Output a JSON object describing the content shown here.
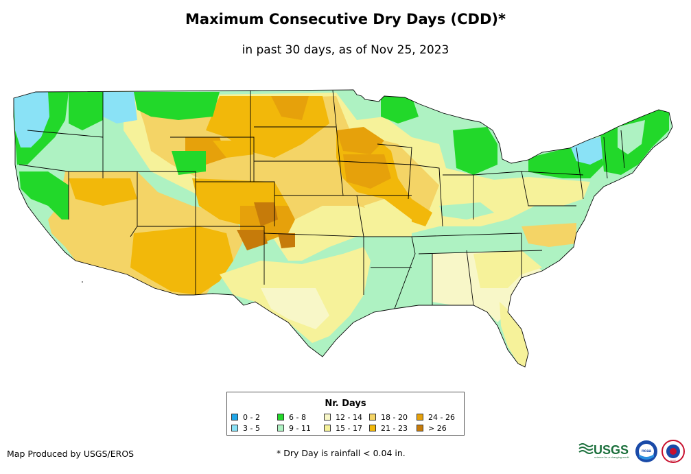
{
  "title": "Maximum Consecutive Dry Days (CDD)*",
  "subtitle": "in past 30 days, as of Nov 25, 2023",
  "legend": {
    "title": "Nr. Days",
    "items": [
      {
        "label": "0 - 2",
        "color": "#1fa6e8"
      },
      {
        "label": "3 - 5",
        "color": "#8ae2f6"
      },
      {
        "label": "6 - 8",
        "color": "#22d82a"
      },
      {
        "label": "9 - 11",
        "color": "#aef2c2"
      },
      {
        "label": "12 - 14",
        "color": "#f8f7c8"
      },
      {
        "label": "15 - 17",
        "color": "#f6f29a"
      },
      {
        "label": "18 - 20",
        "color": "#f4d466"
      },
      {
        "label": "21 - 23",
        "color": "#f2b80a"
      },
      {
        "label": "24 - 26",
        "color": "#e6a10b"
      },
      {
        "label": "> 26",
        "color": "#c67b0a"
      }
    ]
  },
  "credit": "Map Produced by USGS/EROS",
  "footnote": "* Dry Day is rainfall < 0.04 in.",
  "logos": {
    "usgs": {
      "text": "USGS",
      "tagline": "science for a changing world"
    },
    "noaa": {
      "text": "noaa"
    },
    "nws": {
      "text": "NWS"
    }
  }
}
